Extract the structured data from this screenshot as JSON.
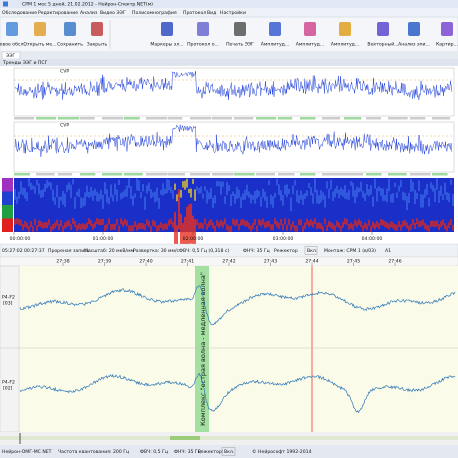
{
  "window_title": "СРМ 1 мес 5 дней, 21.02.2012 - Нейрон-Спектр.NET(м)",
  "menu": [
    "Обследование",
    "Редактирование",
    "Анализ",
    "Видео ЭЭГ",
    "Полисомнография",
    "Протокол",
    "Вид",
    "Настройки"
  ],
  "toolbar": [
    "Новое обсл...",
    "Открыть ме...",
    "Сохранить",
    "Закрыть",
    "Маркеры эл...",
    "Протокол о...",
    "Печать ЭЭГ",
    "Амплитуд...",
    "Амплитуд...",
    "Амплитуд...",
    "Векторный...",
    "Анализ эпи...",
    "Картир..."
  ],
  "tab": "ЭЭГ",
  "trends": {
    "title": "Тренды ЭЭГ и ПСГ",
    "channels": [
      "CVP",
      "CVP"
    ],
    "time_axis": [
      "00:00:00",
      "01:00:00",
      "02:00:00",
      "03:00:00",
      "04:00:00"
    ]
  },
  "eeg_toolbar": {
    "time": "05:27:02",
    "position": "00:27:37",
    "mode": "Прореная запись",
    "scale": "Масштаб: 20 мкВ/мм",
    "sweep": "Развертка: 30 мм/с",
    "hpf": "ФВЧ: 0,5 Гц (0,318 с)",
    "lpf": "ФНЧ: 35 Гц",
    "notch": "Режектор",
    "notch_state": "Вкл.",
    "montage": "Монтаж: СРМ 1 (в/03)",
    "ref": "А1"
  },
  "ruler": [
    "27:38",
    "27:39",
    "27:40",
    "27:41",
    "27:42",
    "27:43",
    "27:44",
    "27:45",
    "27:46"
  ],
  "channels": [
    {
      "name": "P4-F2",
      "num": "[03]"
    },
    {
      "name": "P4-F2",
      "num": "[02]"
    }
  ],
  "annotation": "Комплекс \"острая волна - медленная волна\"",
  "status": {
    "device": "Нейрон-ОМГ-МС NET",
    "rate": "Частота квантования: 200 Гц",
    "hpf": "ФВЧ: 0,5 Гц",
    "lpf": "ФНЧ: 35 Гц",
    "notch": "Режектор:",
    "notch_state": "Вкл.",
    "copyright": "© Нейрософт 1992-2014"
  }
}
